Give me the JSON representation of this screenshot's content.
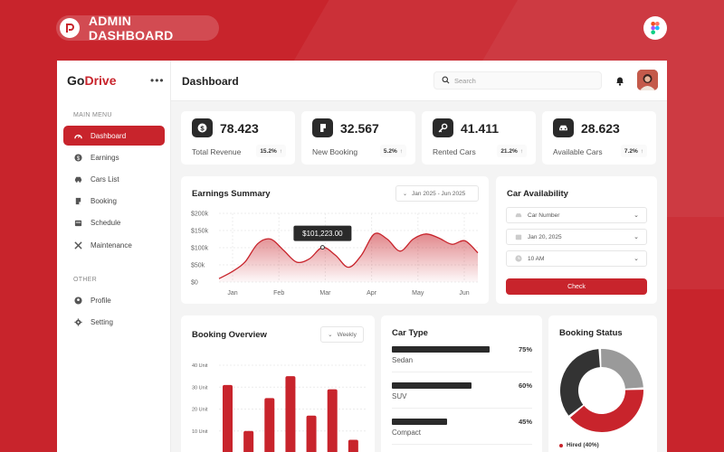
{
  "badge": {
    "text": "ADMIN DASHBOARD"
  },
  "brand": {
    "name_part1": "Go",
    "name_part2": "Drive",
    "menu_icon": "more-dots-icon"
  },
  "sidebar": {
    "main_label": "MAIN MENU",
    "main_items": [
      {
        "label": "Dashboard",
        "icon": "dashboard-icon",
        "active": true
      },
      {
        "label": "Earnings",
        "icon": "coin-icon"
      },
      {
        "label": "Cars List",
        "icon": "car-icon"
      },
      {
        "label": "Booking",
        "icon": "booking-icon"
      },
      {
        "label": "Schedule",
        "icon": "calendar-icon"
      },
      {
        "label": "Maintenance",
        "icon": "tools-icon"
      }
    ],
    "other_label": "OTHER",
    "other_items": [
      {
        "label": "Profile",
        "icon": "user-icon"
      },
      {
        "label": "Setting",
        "icon": "gear-icon"
      }
    ]
  },
  "header": {
    "title": "Dashboard",
    "search_placeholder": "Search"
  },
  "stats": [
    {
      "value": "78.423",
      "label": "Total Revenue",
      "change": "15.2%",
      "icon": "dollar-icon"
    },
    {
      "value": "32.567",
      "label": "New Booking",
      "change": "5.2%",
      "icon": "booking-icon"
    },
    {
      "value": "41.411",
      "label": "Rented Cars",
      "change": "21.2%",
      "icon": "key-icon"
    },
    {
      "value": "28.623",
      "label": "Available Cars",
      "change": "7.2%",
      "icon": "car-icon"
    }
  ],
  "earnings": {
    "title": "Earnings Summary",
    "date_range": "Jan 2025 - Jun 2025",
    "tooltip": "$101,223.00"
  },
  "chart_data": {
    "type": "area",
    "categories": [
      "Jan",
      "Feb",
      "Mar",
      "Apr",
      "May",
      "Jun"
    ],
    "x": [
      0,
      0.25,
      0.5,
      0.75,
      1,
      1.25,
      1.5,
      1.75,
      2,
      2.25,
      2.5,
      2.75,
      3,
      3.25,
      3.5,
      3.75,
      4,
      4.25,
      4.5,
      4.75,
      5
    ],
    "values": [
      10,
      30,
      58,
      112,
      125,
      92,
      58,
      68,
      101,
      78,
      43,
      78,
      140,
      125,
      90,
      125,
      140,
      128,
      110,
      120,
      85
    ],
    "yticks": [
      "$200k",
      "$150k",
      "$100k",
      "$50k",
      "$0"
    ],
    "ylim": [
      0,
      200
    ],
    "grid": true,
    "accent": "#c8242c"
  },
  "availability": {
    "title": "Car Availability",
    "car_number": "Car Number",
    "date": "Jan 20, 2025",
    "time": "10 AM",
    "check_label": "Check"
  },
  "booking_overview": {
    "title": "Booking Overview",
    "period": "Weekly",
    "yticks": [
      "40 Unit",
      "30 Unit",
      "20 Unit",
      "10 Unit"
    ],
    "values": [
      31,
      10,
      25,
      35,
      17,
      29,
      6
    ],
    "ylim": [
      0,
      40
    ],
    "color": "#c8242c"
  },
  "car_type": {
    "title": "Car Type",
    "rows": [
      {
        "label": "Sedan",
        "pct": "75%",
        "value": 75
      },
      {
        "label": "SUV",
        "pct": "60%",
        "value": 60
      },
      {
        "label": "Compact",
        "pct": "45%",
        "value": 45
      }
    ]
  },
  "booking_status": {
    "title": "Booking Status",
    "legend": "Hired (40%)",
    "segments": [
      {
        "name": "Hired",
        "value": 40,
        "color": "#c8242c"
      },
      {
        "name": "",
        "value": 35,
        "color": "#333333"
      },
      {
        "name": "",
        "value": 25,
        "color": "#9a9a9a"
      }
    ]
  }
}
